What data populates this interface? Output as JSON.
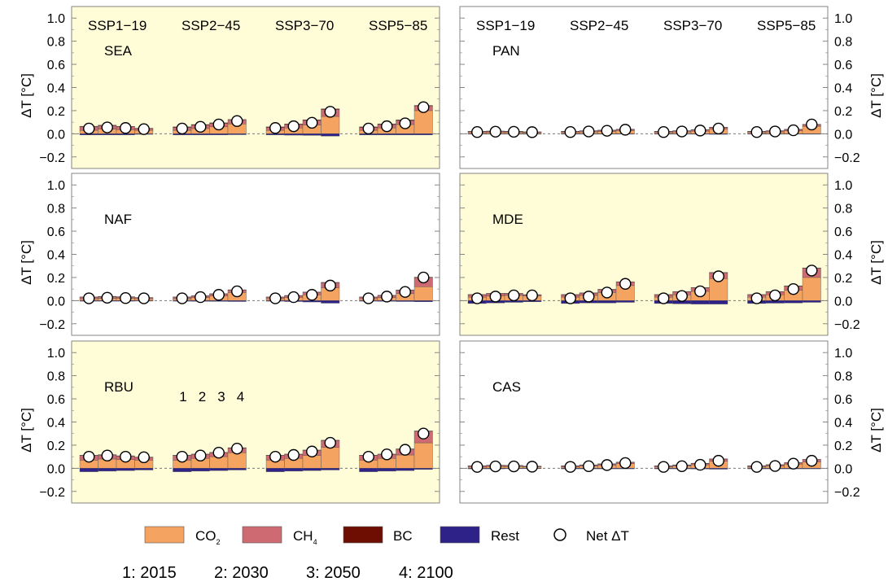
{
  "figure": {
    "y_axis_label": "ΔT [°C]",
    "scenario_labels": [
      "SSP1−19",
      "SSP2−45",
      "SSP3−70",
      "SSP5−85"
    ],
    "step_labels": [
      "1",
      "2",
      "3",
      "4"
    ],
    "legend": {
      "co2": {
        "label": "CO",
        "sub": "2",
        "color": "#F4A460"
      },
      "ch4": {
        "label": "CH",
        "sub": "4",
        "color": "#CD6A72"
      },
      "bc": {
        "label": "BC",
        "color": "#6E0E02"
      },
      "rest": {
        "label": "Rest",
        "color": "#2E2289"
      },
      "net": {
        "label": "Net ΔT"
      }
    },
    "year_key": [
      "1: 2015",
      "2: 2030",
      "3: 2050",
      "4: 2100"
    ],
    "highlight_color": "#FFFDD8"
  },
  "chart_data": {
    "type": "bar",
    "stacked": true,
    "ylim": [
      -0.3,
      1.1
    ],
    "yticks": [
      "1.0",
      "0.8",
      "0.6",
      "0.4",
      "0.2",
      "0.0",
      "−0.2"
    ],
    "scenarios": [
      "SSP1−19",
      "SSP2−45",
      "SSP3−70",
      "SSP5−85"
    ],
    "time_points": [
      "2015",
      "2030",
      "2050",
      "2100"
    ],
    "series_order": [
      "CO2",
      "CH4",
      "BC",
      "Rest"
    ],
    "panels": [
      {
        "region": "SEA",
        "highlighted": true,
        "scenarios": [
          {
            "co2": [
              0.03,
              0.04,
              0.035,
              0.03
            ],
            "ch4": [
              0.03,
              0.03,
              0.025,
              0.015
            ],
            "bc": [
              0.005,
              0.005,
              0.004,
              0.003
            ],
            "rest": [
              -0.01,
              -0.01,
              -0.01,
              -0.005
            ],
            "net": [
              0.045,
              0.055,
              0.05,
              0.04
            ]
          },
          {
            "co2": [
              0.03,
              0.045,
              0.06,
              0.085
            ],
            "ch4": [
              0.025,
              0.03,
              0.03,
              0.035
            ],
            "bc": [
              0.005,
              0.005,
              0.005,
              0.004
            ],
            "rest": [
              -0.01,
              -0.01,
              -0.01,
              -0.008
            ],
            "net": [
              0.045,
              0.06,
              0.08,
              0.11
            ]
          },
          {
            "co2": [
              0.03,
              0.05,
              0.075,
              0.15
            ],
            "ch4": [
              0.025,
              0.03,
              0.04,
              0.06
            ],
            "bc": [
              0.005,
              0.005,
              0.006,
              0.006
            ],
            "rest": [
              -0.01,
              -0.012,
              -0.014,
              -0.02
            ],
            "net": [
              0.05,
              0.065,
              0.095,
              0.19
            ]
          },
          {
            "co2": [
              0.03,
              0.05,
              0.08,
              0.2
            ],
            "ch4": [
              0.025,
              0.03,
              0.035,
              0.04
            ],
            "bc": [
              0.005,
              0.005,
              0.005,
              0.005
            ],
            "rest": [
              -0.01,
              -0.01,
              -0.01,
              -0.01
            ],
            "net": [
              0.045,
              0.065,
              0.09,
              0.23
            ]
          }
        ]
      },
      {
        "region": "PAN",
        "highlighted": false,
        "scenarios": [
          {
            "co2": [
              0.01,
              0.012,
              0.012,
              0.01
            ],
            "ch4": [
              0.01,
              0.01,
              0.008,
              0.006
            ],
            "bc": [
              0.002,
              0.002,
              0.002,
              0.001
            ],
            "rest": [
              -0.003,
              -0.003,
              -0.003,
              -0.002
            ],
            "net": [
              0.015,
              0.018,
              0.017,
              0.014
            ]
          },
          {
            "co2": [
              0.01,
              0.015,
              0.02,
              0.028
            ],
            "ch4": [
              0.01,
              0.01,
              0.01,
              0.01
            ],
            "bc": [
              0.002,
              0.002,
              0.002,
              0.002
            ],
            "rest": [
              -0.003,
              -0.003,
              -0.003,
              -0.003
            ],
            "net": [
              0.015,
              0.02,
              0.026,
              0.035
            ]
          },
          {
            "co2": [
              0.01,
              0.015,
              0.022,
              0.04
            ],
            "ch4": [
              0.01,
              0.01,
              0.012,
              0.015
            ],
            "bc": [
              0.002,
              0.002,
              0.002,
              0.002
            ],
            "rest": [
              -0.003,
              -0.003,
              -0.004,
              -0.005
            ],
            "net": [
              0.015,
              0.02,
              0.028,
              0.045
            ]
          },
          {
            "co2": [
              0.01,
              0.015,
              0.025,
              0.065
            ],
            "ch4": [
              0.01,
              0.01,
              0.012,
              0.015
            ],
            "bc": [
              0.002,
              0.002,
              0.002,
              0.002
            ],
            "rest": [
              -0.003,
              -0.003,
              -0.003,
              -0.004
            ],
            "net": [
              0.015,
              0.02,
              0.03,
              0.08
            ]
          }
        ]
      },
      {
        "region": "NAF",
        "highlighted": false,
        "scenarios": [
          {
            "co2": [
              0.015,
              0.02,
              0.02,
              0.015
            ],
            "ch4": [
              0.015,
              0.015,
              0.012,
              0.01
            ],
            "bc": [
              0.002,
              0.002,
              0.002,
              0.002
            ],
            "rest": [
              -0.005,
              -0.005,
              -0.005,
              -0.004
            ],
            "net": [
              0.02,
              0.025,
              0.022,
              0.02
            ]
          },
          {
            "co2": [
              0.015,
              0.025,
              0.04,
              0.07
            ],
            "ch4": [
              0.015,
              0.015,
              0.018,
              0.022
            ],
            "bc": [
              0.002,
              0.002,
              0.002,
              0.002
            ],
            "rest": [
              -0.005,
              -0.006,
              -0.007,
              -0.008
            ],
            "net": [
              0.02,
              0.03,
              0.05,
              0.08
            ]
          },
          {
            "co2": [
              0.015,
              0.025,
              0.05,
              0.11
            ],
            "ch4": [
              0.015,
              0.018,
              0.022,
              0.045
            ],
            "bc": [
              0.002,
              0.002,
              0.003,
              0.003
            ],
            "rest": [
              -0.005,
              -0.008,
              -0.012,
              -0.022
            ],
            "net": [
              0.02,
              0.03,
              0.05,
              0.13
            ]
          },
          {
            "co2": [
              0.015,
              0.025,
              0.06,
              0.12
            ],
            "ch4": [
              0.015,
              0.02,
              0.03,
              0.08
            ],
            "bc": [
              0.002,
              0.002,
              0.002,
              0.003
            ],
            "rest": [
              -0.005,
              -0.006,
              -0.008,
              -0.01
            ],
            "net": [
              0.02,
              0.035,
              0.075,
              0.2
            ]
          }
        ]
      },
      {
        "region": "MDE",
        "highlighted": true,
        "scenarios": [
          {
            "co2": [
              0.03,
              0.04,
              0.045,
              0.04
            ],
            "ch4": [
              0.02,
              0.02,
              0.015,
              0.01
            ],
            "bc": [
              0.003,
              0.003,
              0.003,
              0.002
            ],
            "rest": [
              -0.025,
              -0.02,
              -0.015,
              -0.01
            ],
            "net": [
              0.02,
              0.035,
              0.045,
              0.045
            ]
          },
          {
            "co2": [
              0.03,
              0.045,
              0.07,
              0.13
            ],
            "ch4": [
              0.02,
              0.02,
              0.025,
              0.03
            ],
            "bc": [
              0.003,
              0.003,
              0.003,
              0.003
            ],
            "rest": [
              -0.025,
              -0.02,
              -0.02,
              -0.015
            ],
            "net": [
              0.02,
              0.035,
              0.07,
              0.145
            ]
          },
          {
            "co2": [
              0.03,
              0.05,
              0.08,
              0.19
            ],
            "ch4": [
              0.02,
              0.025,
              0.03,
              0.05
            ],
            "bc": [
              0.003,
              0.003,
              0.003,
              0.004
            ],
            "rest": [
              -0.025,
              -0.028,
              -0.03,
              -0.03
            ],
            "net": [
              0.02,
              0.04,
              0.08,
              0.21
            ]
          },
          {
            "co2": [
              0.03,
              0.05,
              0.09,
              0.2
            ],
            "ch4": [
              0.02,
              0.025,
              0.035,
              0.08
            ],
            "bc": [
              0.003,
              0.003,
              0.003,
              0.003
            ],
            "rest": [
              -0.025,
              -0.022,
              -0.02,
              -0.015
            ],
            "net": [
              0.02,
              0.045,
              0.1,
              0.26
            ]
          }
        ]
      },
      {
        "region": "RBU",
        "highlighted": true,
        "scenarios": [
          {
            "co2": [
              0.07,
              0.08,
              0.075,
              0.07
            ],
            "ch4": [
              0.04,
              0.035,
              0.03,
              0.025
            ],
            "bc": [
              0.003,
              0.003,
              0.003,
              0.002
            ],
            "rest": [
              -0.03,
              -0.025,
              -0.02,
              -0.015
            ],
            "net": [
              0.1,
              0.11,
              0.1,
              0.095
            ]
          },
          {
            "co2": [
              0.07,
              0.085,
              0.1,
              0.135
            ],
            "ch4": [
              0.04,
              0.035,
              0.035,
              0.04
            ],
            "bc": [
              0.003,
              0.003,
              0.003,
              0.003
            ],
            "rest": [
              -0.03,
              -0.025,
              -0.02,
              -0.015
            ],
            "net": [
              0.1,
              0.11,
              0.135,
              0.17
            ]
          },
          {
            "co2": [
              0.07,
              0.085,
              0.11,
              0.18
            ],
            "ch4": [
              0.04,
              0.035,
              0.045,
              0.06
            ],
            "bc": [
              0.003,
              0.003,
              0.003,
              0.003
            ],
            "rest": [
              -0.03,
              -0.025,
              -0.02,
              -0.015
            ],
            "net": [
              0.1,
              0.115,
              0.145,
              0.22
            ]
          },
          {
            "co2": [
              0.07,
              0.085,
              0.115,
              0.22
            ],
            "ch4": [
              0.04,
              0.035,
              0.05,
              0.1
            ],
            "bc": [
              0.003,
              0.003,
              0.003,
              0.003
            ],
            "rest": [
              -0.03,
              -0.025,
              -0.02,
              -0.01
            ],
            "net": [
              0.1,
              0.12,
              0.16,
              0.3
            ]
          }
        ]
      },
      {
        "region": "CAS",
        "highlighted": false,
        "scenarios": [
          {
            "co2": [
              0.01,
              0.015,
              0.015,
              0.012
            ],
            "ch4": [
              0.01,
              0.01,
              0.008,
              0.006
            ],
            "bc": [
              0.002,
              0.002,
              0.002,
              0.001
            ],
            "rest": [
              -0.005,
              -0.005,
              -0.004,
              -0.003
            ],
            "net": [
              0.012,
              0.016,
              0.016,
              0.014
            ]
          },
          {
            "co2": [
              0.01,
              0.018,
              0.025,
              0.04
            ],
            "ch4": [
              0.01,
              0.01,
              0.012,
              0.012
            ],
            "bc": [
              0.002,
              0.002,
              0.002,
              0.002
            ],
            "rest": [
              -0.005,
              -0.005,
              -0.005,
              -0.005
            ],
            "net": [
              0.012,
              0.018,
              0.028,
              0.045
            ]
          },
          {
            "co2": [
              0.01,
              0.018,
              0.03,
              0.06
            ],
            "ch4": [
              0.01,
              0.01,
              0.012,
              0.02
            ],
            "bc": [
              0.002,
              0.002,
              0.002,
              0.002
            ],
            "rest": [
              -0.005,
              -0.005,
              -0.006,
              -0.008
            ],
            "net": [
              0.012,
              0.018,
              0.03,
              0.065
            ]
          },
          {
            "co2": [
              0.01,
              0.02,
              0.035,
              0.055
            ],
            "ch4": [
              0.01,
              0.01,
              0.012,
              0.02
            ],
            "bc": [
              0.002,
              0.002,
              0.002,
              0.002
            ],
            "rest": [
              -0.005,
              -0.005,
              -0.005,
              -0.005
            ],
            "net": [
              0.012,
              0.02,
              0.04,
              0.065
            ]
          }
        ]
      }
    ]
  }
}
